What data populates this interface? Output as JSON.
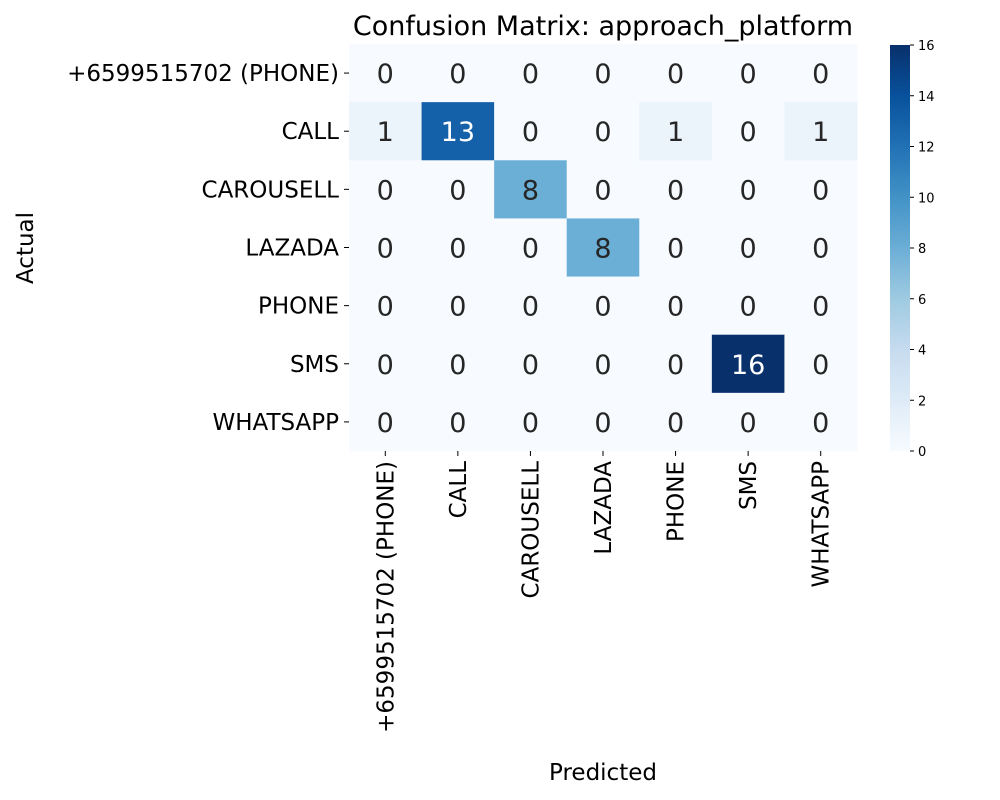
{
  "chart_data": {
    "type": "heatmap",
    "title": "Confusion Matrix: approach_platform",
    "xlabel": "Predicted",
    "ylabel": "Actual",
    "row_labels": [
      "+6599515702 (PHONE)",
      "CALL",
      "CAROUSELL",
      "LAZADA",
      "PHONE",
      "SMS",
      "WHATSAPP"
    ],
    "col_labels": [
      "+6599515702 (PHONE)",
      "CALL",
      "CAROUSELL",
      "LAZADA",
      "PHONE",
      "SMS",
      "WHATSAPP"
    ],
    "values": [
      [
        0,
        0,
        0,
        0,
        0,
        0,
        0
      ],
      [
        1,
        13,
        0,
        0,
        1,
        0,
        1
      ],
      [
        0,
        0,
        8,
        0,
        0,
        0,
        0
      ],
      [
        0,
        0,
        0,
        8,
        0,
        0,
        0
      ],
      [
        0,
        0,
        0,
        0,
        0,
        0,
        0
      ],
      [
        0,
        0,
        0,
        0,
        0,
        16,
        0
      ],
      [
        0,
        0,
        0,
        0,
        0,
        0,
        0
      ]
    ],
    "colorbar": {
      "min": 0,
      "max": 16,
      "ticks": [
        0,
        2,
        4,
        6,
        8,
        10,
        12,
        14,
        16
      ]
    },
    "colormap": "Blues"
  }
}
